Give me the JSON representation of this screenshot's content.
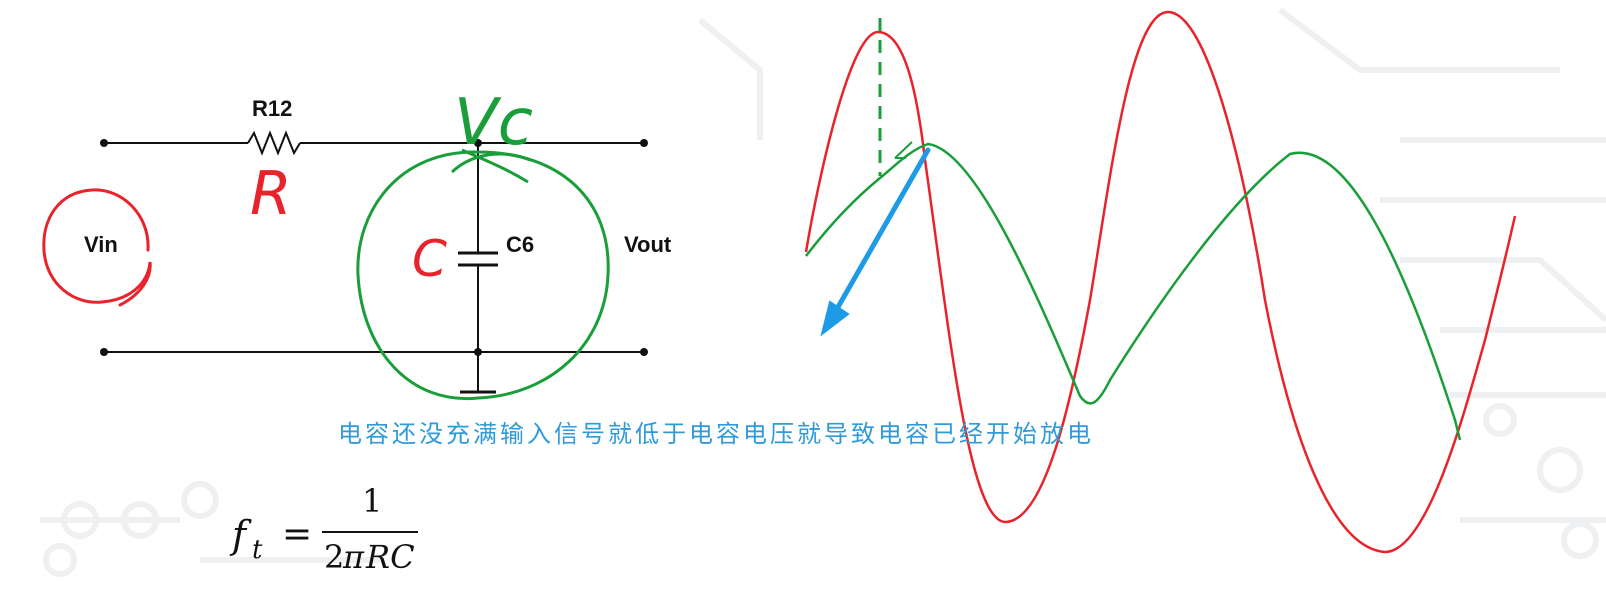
{
  "schematic": {
    "resistor_label": "R12",
    "capacitor_label": "C6",
    "input_label": "Vin",
    "output_label": "Vout"
  },
  "annotations": {
    "resistor_symbol": "R",
    "capacitor_symbol": "C",
    "capacitor_voltage": "Vc",
    "caption": "电容还没充满输入信号就低于电容电压就导致电容已经开始放电"
  },
  "formula": {
    "lhs_symbol": "f",
    "lhs_subscript": "t",
    "equals": "=",
    "numerator": "1",
    "denominator_two": "2",
    "denominator_pi": "π",
    "denominator_rc": "RC"
  },
  "colors": {
    "schematic": "#111111",
    "ink_red": "#e8232b",
    "ink_green": "#1a9e3a",
    "arrow_blue": "#1e9be6",
    "caption_blue": "#2f9bd8",
    "background_pattern": "#eef0f2"
  }
}
